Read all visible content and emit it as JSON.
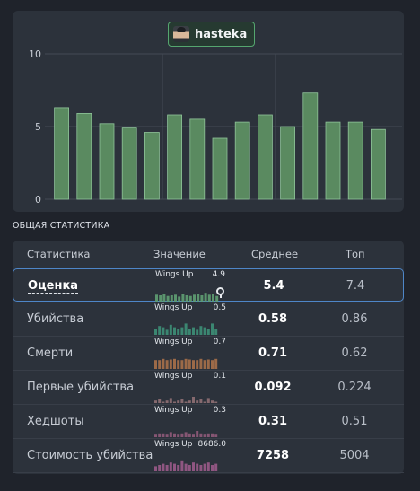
{
  "player": {
    "name": "hasteka"
  },
  "chart_data": {
    "type": "bar",
    "ylim": [
      0,
      10
    ],
    "yticks": [
      "0",
      "5",
      "10"
    ],
    "values": [
      6.3,
      5.9,
      5.2,
      4.9,
      4.6,
      5.8,
      5.5,
      4.2,
      5.3,
      5.8,
      5.0,
      7.3,
      5.3,
      5.3,
      4.8
    ],
    "bar_color": "#5a8a60"
  },
  "section_title": "ОБЩАЯ СТАТИСТИКА",
  "table": {
    "headers": {
      "stat": "Статистика",
      "value": "Значение",
      "avg": "Среднее",
      "top": "Топ"
    },
    "rows": [
      {
        "name": "Оценка",
        "mini_label": "Wings Up",
        "mini_value": "4.9",
        "avg": "5.4",
        "top": "7.4",
        "color": "#5f9e73",
        "bars": [
          0.55,
          0.5,
          0.6,
          0.45,
          0.5,
          0.55,
          0.4,
          0.6,
          0.5,
          0.45,
          0.55,
          0.6,
          0.5,
          0.7,
          0.55,
          0.6,
          0.45
        ]
      },
      {
        "name": "Убийства",
        "mini_label": "Wings Up",
        "mini_value": "0.5",
        "avg": "0.58",
        "top": "0.86",
        "color": "#3d8f78",
        "bars": [
          0.5,
          0.7,
          0.6,
          0.4,
          0.8,
          0.6,
          0.5,
          0.6,
          0.9,
          0.5,
          0.6,
          0.4,
          0.7,
          0.6,
          0.5,
          0.9,
          0.5
        ]
      },
      {
        "name": "Смерти",
        "mini_label": "Wings Up",
        "mini_value": "0.7",
        "avg": "0.71",
        "top": "0.62",
        "color": "#a8704a",
        "bars": [
          0.7,
          0.7,
          0.8,
          0.7,
          0.75,
          0.8,
          0.7,
          0.7,
          0.8,
          0.75,
          0.7,
          0.7,
          0.8,
          0.7,
          0.75,
          0.7,
          0.8
        ]
      },
      {
        "name": "Первые убийства",
        "mini_label": "Wings Up",
        "mini_value": "0.1",
        "avg": "0.092",
        "top": "0.224",
        "color": "#8f6f74",
        "bars": [
          0.2,
          0.3,
          0.1,
          0.2,
          0.4,
          0.1,
          0.2,
          0.3,
          0.1,
          0.2,
          0.5,
          0.2,
          0.3,
          0.1,
          0.4,
          0.2,
          0.1
        ]
      },
      {
        "name": "Хедшоты",
        "mini_label": "Wings Up",
        "mini_value": "0.3",
        "avg": "0.31",
        "top": "0.51",
        "color": "#8f5a7a",
        "bars": [
          0.2,
          0.3,
          0.3,
          0.2,
          0.4,
          0.3,
          0.2,
          0.3,
          0.4,
          0.3,
          0.2,
          0.5,
          0.3,
          0.2,
          0.3,
          0.3,
          0.2
        ]
      },
      {
        "name": "Стоимость убийства",
        "mini_label": "Wings Up",
        "mini_value": "8686.0",
        "avg": "7258",
        "top": "5004",
        "color": "#9a5a8a",
        "bars": [
          0.4,
          0.5,
          0.6,
          0.5,
          0.7,
          0.6,
          0.5,
          0.8,
          0.6,
          0.5,
          0.7,
          0.6,
          0.5,
          0.6,
          0.7,
          0.5,
          0.6
        ]
      }
    ]
  }
}
